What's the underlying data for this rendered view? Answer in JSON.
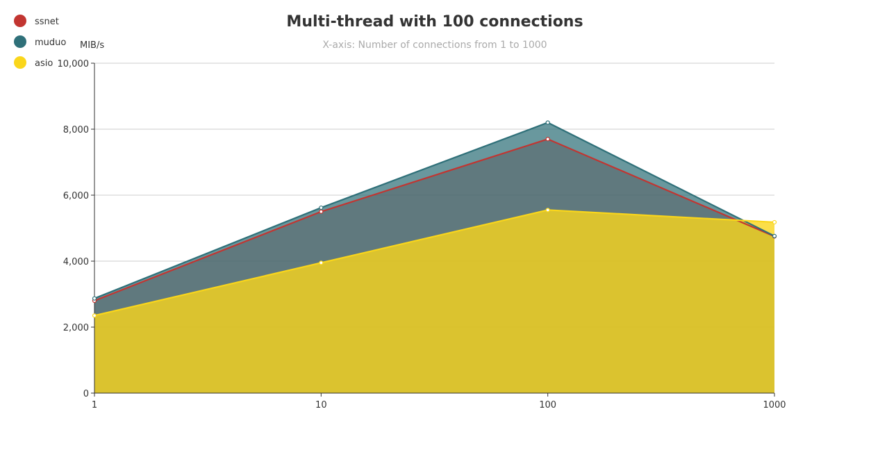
{
  "chart_data": {
    "type": "area",
    "title": "Multi-thread  with 100 connections",
    "subtitle": "X-axis: Number of connections from 1 to 1000",
    "ylabel": "MIB/s",
    "xscale": "log",
    "x": [
      "1",
      "10",
      "100",
      "1000"
    ],
    "ylim": [
      0,
      10000
    ],
    "yticks": [
      "0",
      "2,000",
      "4,000",
      "6,000",
      "8,000",
      "10,000"
    ],
    "grid": true,
    "legend_position": "top-left",
    "series": [
      {
        "name": "ssnet",
        "color": "#c23531",
        "values": [
          2800,
          5500,
          7700,
          4750
        ]
      },
      {
        "name": "muduo",
        "color": "#2f7079",
        "values": [
          2870,
          5620,
          8200,
          4760
        ]
      },
      {
        "name": "asio",
        "color": "#fad61b",
        "values": [
          2350,
          3950,
          5550,
          5180
        ]
      }
    ]
  }
}
